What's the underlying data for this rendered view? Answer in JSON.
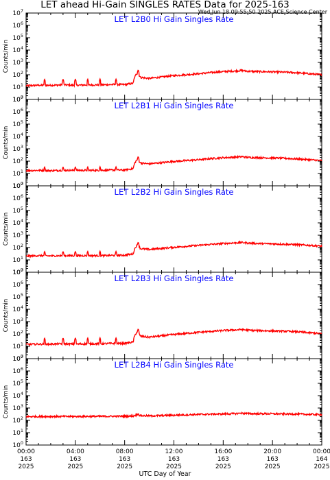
{
  "header": {
    "title": "LET ahead Hi-Gain SINGLES RATES Data for 2025-163",
    "timestamp": "Wed Jun 18 09:55:50 2025 ACE Science Center"
  },
  "colors": {
    "series": "#ff0000",
    "panel_title": "#0000ff",
    "axes": "#000000"
  },
  "chart_data": [
    {
      "type": "line",
      "title": "LET L2B0 Hi Gain Singles Rate",
      "ylabel": "Counts/min",
      "yscale": "log",
      "ylim": [
        1,
        10000000
      ],
      "xlim": [
        0,
        24
      ],
      "series": [
        {
          "x": [
            0,
            1,
            2,
            3,
            4,
            5,
            6,
            7,
            8,
            8.7,
            9,
            9.3,
            10,
            11,
            12,
            13,
            14,
            15,
            16,
            17,
            17.5,
            18,
            19,
            20,
            21,
            22,
            23,
            24
          ],
          "values": [
            13,
            14,
            14,
            15,
            14,
            15,
            15,
            16,
            16,
            20,
            130,
            60,
            50,
            65,
            85,
            100,
            120,
            150,
            180,
            200,
            220,
            190,
            180,
            170,
            160,
            145,
            120,
            100
          ]
        }
      ],
      "spikes": [
        [
          1.5,
          45
        ],
        [
          3.0,
          45
        ],
        [
          4.0,
          45
        ],
        [
          5.0,
          45
        ],
        [
          6.0,
          45
        ],
        [
          7.3,
          45
        ],
        [
          9.1,
          250
        ]
      ]
    },
    {
      "type": "line",
      "title": "LET L2B1 Hi Gain Singles Rate",
      "ylabel": "Counts/min",
      "yscale": "log",
      "ylim": [
        1,
        10000000
      ],
      "xlim": [
        0,
        24
      ],
      "series": [
        {
          "x": [
            0,
            1,
            2,
            3,
            4,
            5,
            6,
            7,
            8,
            8.7,
            9,
            9.3,
            10,
            11,
            12,
            13,
            14,
            15,
            16,
            17,
            17.5,
            18,
            19,
            20,
            21,
            22,
            23,
            24
          ],
          "values": [
            17,
            18,
            17,
            18,
            18,
            18,
            18,
            19,
            19,
            25,
            130,
            70,
            60,
            75,
            95,
            110,
            130,
            160,
            190,
            210,
            230,
            200,
            190,
            180,
            170,
            150,
            130,
            110
          ]
        }
      ],
      "spikes": [
        [
          1.5,
          35
        ],
        [
          3.0,
          35
        ],
        [
          4.0,
          35
        ],
        [
          5.0,
          35
        ],
        [
          6.0,
          35
        ],
        [
          7.3,
          35
        ],
        [
          9.1,
          240
        ]
      ]
    },
    {
      "type": "line",
      "title": "LET L2B2 Hi Gain Singles Rate",
      "ylabel": "Counts/min",
      "yscale": "log",
      "ylim": [
        1,
        10000000
      ],
      "xlim": [
        0,
        24
      ],
      "series": [
        {
          "x": [
            0,
            1,
            2,
            3,
            4,
            5,
            6,
            7,
            8,
            8.7,
            9,
            9.3,
            10,
            11,
            12,
            13,
            14,
            15,
            16,
            17,
            17.5,
            18,
            19,
            20,
            21,
            22,
            23,
            24
          ],
          "values": [
            20,
            22,
            21,
            22,
            22,
            22,
            22,
            23,
            24,
            30,
            150,
            80,
            70,
            85,
            105,
            125,
            150,
            180,
            210,
            240,
            260,
            230,
            210,
            200,
            185,
            170,
            150,
            130
          ]
        }
      ],
      "spikes": [
        [
          1.5,
          50
        ],
        [
          3.0,
          50
        ],
        [
          4.0,
          50
        ],
        [
          5.0,
          50
        ],
        [
          6.0,
          50
        ],
        [
          7.3,
          50
        ],
        [
          9.1,
          280
        ]
      ]
    },
    {
      "type": "line",
      "title": "LET L2B3 Hi Gain Singles Rate",
      "ylabel": "Counts/min",
      "yscale": "log",
      "ylim": [
        1,
        10000000
      ],
      "xlim": [
        0,
        24
      ],
      "series": [
        {
          "x": [
            0,
            1,
            2,
            3,
            4,
            5,
            6,
            7,
            8,
            8.7,
            9,
            9.3,
            10,
            11,
            12,
            13,
            14,
            15,
            16,
            17,
            17.5,
            18,
            19,
            20,
            21,
            22,
            23,
            24
          ],
          "values": [
            14,
            15,
            15,
            16,
            15,
            16,
            16,
            17,
            17,
            22,
            140,
            65,
            55,
            70,
            90,
            110,
            135,
            160,
            190,
            210,
            230,
            200,
            185,
            175,
            165,
            150,
            125,
            105
          ]
        }
      ],
      "spikes": [
        [
          1.5,
          48
        ],
        [
          3.0,
          48
        ],
        [
          4.0,
          48
        ],
        [
          5.0,
          48
        ],
        [
          6.0,
          48
        ],
        [
          7.3,
          48
        ],
        [
          9.1,
          260
        ]
      ]
    },
    {
      "type": "line",
      "title": "LET L2B4 Hi Gain Singles Rate",
      "ylabel": "Counts/min",
      "yscale": "log",
      "ylim": [
        1,
        10000000
      ],
      "xlim": [
        0,
        24
      ],
      "series": [
        {
          "x": [
            0,
            2,
            4,
            6,
            8,
            8.7,
            9,
            9.3,
            10,
            12,
            14,
            16,
            17,
            17.5,
            18,
            20,
            22,
            24
          ],
          "values": [
            200,
            205,
            205,
            210,
            215,
            225,
            280,
            240,
            230,
            260,
            300,
            330,
            350,
            380,
            350,
            340,
            320,
            290
          ]
        }
      ],
      "spikes": [
        [
          9.1,
          380
        ],
        [
          17.4,
          430
        ]
      ]
    }
  ],
  "xaxis": {
    "title": "UTC Day of Year",
    "ticks": [
      {
        "x": 0,
        "time": "00:00",
        "doy": "163",
        "year": "2025"
      },
      {
        "x": 4,
        "time": "04:00",
        "doy": "163",
        "year": "2025"
      },
      {
        "x": 8,
        "time": "08:00",
        "doy": "163",
        "year": "2025"
      },
      {
        "x": 12,
        "time": "12:00",
        "doy": "163",
        "year": "2025"
      },
      {
        "x": 16,
        "time": "16:00",
        "doy": "163",
        "year": "2025"
      },
      {
        "x": 20,
        "time": "20:00",
        "doy": "163",
        "year": "2025"
      },
      {
        "x": 24,
        "time": "00:00",
        "doy": "164",
        "year": "2025"
      }
    ]
  }
}
